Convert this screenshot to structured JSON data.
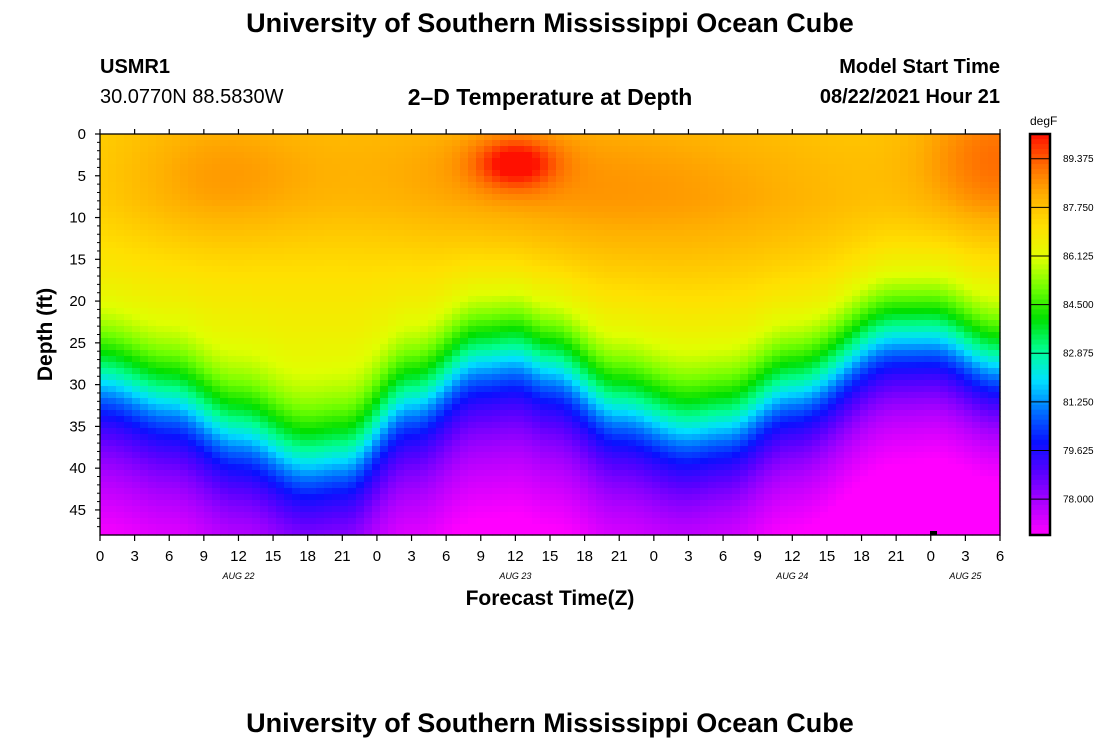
{
  "header": {
    "title_top": "University of Southern Mississippi Ocean Cube",
    "title_bottom": "University of Southern Mississippi Ocean Cube",
    "station": "USMR1",
    "coords": "30.0770N  88.5830W",
    "plot_title": "2–D Temperature at Depth",
    "model_label": "Model Start Time",
    "model_time": "08/22/2021 Hour 21"
  },
  "chart_data": {
    "type": "heatmap",
    "title": "2–D Temperature at Depth",
    "xlabel": "Forecast Time(Z)",
    "ylabel": "Depth (ft)",
    "x_tick_labels": [
      "0",
      "3",
      "6",
      "9",
      "12",
      "15",
      "18",
      "21",
      "0",
      "3",
      "6",
      "9",
      "12",
      "15",
      "18",
      "21",
      "0",
      "3",
      "6",
      "9",
      "12",
      "15",
      "18",
      "21",
      "0",
      "3",
      "6"
    ],
    "x_day_labels": [
      {
        "label": "AUG 22",
        "hour_index": 4
      },
      {
        "label": "AUG 23",
        "hour_index": 12
      },
      {
        "label": "AUG 24",
        "hour_index": 20
      },
      {
        "label": "AUG 25",
        "hour_index": 25
      }
    ],
    "xlim_hours": [
      0,
      78
    ],
    "y_ticks": [
      0,
      5,
      10,
      15,
      20,
      25,
      30,
      35,
      40,
      45
    ],
    "ylim": [
      0,
      48
    ],
    "y_inverted": true,
    "colorbar": {
      "unit": "degF",
      "labels": [
        "89.375",
        "87.750",
        "86.125",
        "84.500",
        "82.875",
        "81.250",
        "79.625",
        "78.000"
      ],
      "range": [
        76.8,
        90.2
      ],
      "colors_low_to_high": [
        "#ff00ff",
        "#b000ff",
        "#5a00ff",
        "#0a10ff",
        "#0070ff",
        "#00e0ff",
        "#00ff90",
        "#00e000",
        "#70ff00",
        "#e0ff00",
        "#ffe000",
        "#ffb000",
        "#ff6a00",
        "#ff1000"
      ]
    },
    "thermocline": {
      "description_units": "depth of the 82.875 degF isotherm (ft) at forecast hour",
      "points": [
        [
          0,
          28.5
        ],
        [
          6,
          31
        ],
        [
          12,
          35
        ],
        [
          18,
          38.5
        ],
        [
          21,
          38
        ],
        [
          27,
          31
        ],
        [
          33,
          26
        ],
        [
          36,
          25.5
        ],
        [
          39,
          27
        ],
        [
          45,
          32
        ],
        [
          51,
          34.5
        ],
        [
          54,
          34
        ],
        [
          60,
          30
        ],
        [
          69,
          23.5
        ],
        [
          72,
          23.5
        ],
        [
          78,
          27
        ]
      ]
    },
    "surface_temp_degF_range": [
      87.2,
      90.2
    ],
    "deep_temp_degF_range": [
      77.0,
      79.6
    ]
  }
}
